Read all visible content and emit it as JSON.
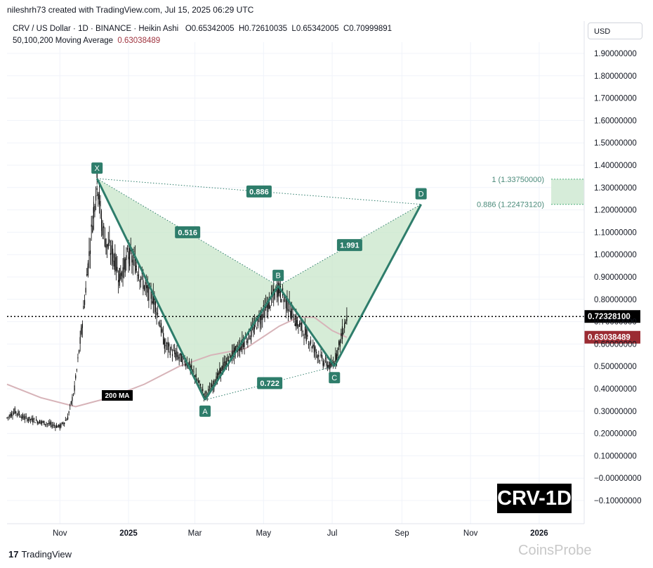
{
  "header": {
    "creator": "nileshrh73 created with TradingView.com, Jul 15, 2025 06:29 UTC",
    "symbol_line": "CRV / US Dollar · 1D · BINANCE · Heikin Ashi",
    "ohlc": {
      "o_label": "O",
      "o": "0.65342005",
      "h_label": "H",
      "h": "0.72610035",
      "l_label": "L",
      "l": "0.65342005",
      "c_label": "C",
      "c": "0.70999891"
    },
    "ma_label": "50,100,200 Moving Average",
    "ma_value": "0.63038489"
  },
  "currency_button": "USD",
  "badge": "CRV-1D",
  "footer": {
    "logo_text": "TradingView",
    "watermark": "CoinsProbe"
  },
  "colors": {
    "pattern_fill": "#c8e6c9",
    "pattern_line": "#2e7d6b",
    "label_bg": "#2e7d6b",
    "ma_line": "#d7b3b8",
    "last_price_bg": "#000000",
    "ma_price_bg": "#9b2c33",
    "target_zone": "#d6ecd9"
  },
  "chart_data": {
    "type": "line",
    "title": "",
    "xlabel": "",
    "ylabel": "",
    "y_axis": {
      "ticks": [
        "1.90000000",
        "1.80000000",
        "1.70000000",
        "1.60000000",
        "1.50000000",
        "1.40000000",
        "1.30000000",
        "1.20000000",
        "1.10000000",
        "1.00000000",
        "0.90000000",
        "0.80000000",
        "0.70000000",
        "0.60000000",
        "0.50000000",
        "0.40000000",
        "0.30000000",
        "0.20000000",
        "0.10000000",
        "−0.00000000",
        "−0.10000000"
      ],
      "tick_values": [
        1.9,
        1.8,
        1.7,
        1.6,
        1.5,
        1.4,
        1.3,
        1.2,
        1.1,
        1.0,
        0.9,
        0.8,
        0.7,
        0.6,
        0.5,
        0.4,
        0.3,
        0.2,
        0.1,
        0.0,
        -0.1
      ],
      "range": [
        -0.2,
        2.0
      ]
    },
    "x_axis": {
      "ticks": [
        {
          "label": "Nov",
          "date": "2024-11-01"
        },
        {
          "label": "2025",
          "date": "2025-01-01"
        },
        {
          "label": "Mar",
          "date": "2025-03-01"
        },
        {
          "label": "May",
          "date": "2025-05-01"
        },
        {
          "label": "Jul",
          "date": "2025-07-01"
        },
        {
          "label": "Sep",
          "date": "2025-09-01"
        },
        {
          "label": "Nov",
          "date": "2025-11-01"
        },
        {
          "label": "2026",
          "date": "2026-01-01"
        }
      ],
      "range": [
        "2024-09-15",
        "2026-02-10"
      ]
    },
    "last_price": {
      "value": 0.723281,
      "label": "0.72328100"
    },
    "ma_price": {
      "value": 0.63038489,
      "label": "0.63038489"
    },
    "ma_annotation": "200 MA",
    "price_series": [
      {
        "date": "2024-09-15",
        "value": 0.27
      },
      {
        "date": "2024-09-22",
        "value": 0.3
      },
      {
        "date": "2024-09-30",
        "value": 0.27
      },
      {
        "date": "2024-10-08",
        "value": 0.26
      },
      {
        "date": "2024-10-16",
        "value": 0.25
      },
      {
        "date": "2024-10-24",
        "value": 0.24
      },
      {
        "date": "2024-11-01",
        "value": 0.23
      },
      {
        "date": "2024-11-08",
        "value": 0.27
      },
      {
        "date": "2024-11-14",
        "value": 0.4
      },
      {
        "date": "2024-11-20",
        "value": 0.65
      },
      {
        "date": "2024-11-26",
        "value": 0.95
      },
      {
        "date": "2024-12-01",
        "value": 1.2
      },
      {
        "date": "2024-12-04",
        "value": 1.34
      },
      {
        "date": "2024-12-08",
        "value": 1.15
      },
      {
        "date": "2024-12-12",
        "value": 1.05
      },
      {
        "date": "2024-12-18",
        "value": 1.0
      },
      {
        "date": "2024-12-24",
        "value": 0.9
      },
      {
        "date": "2025-01-01",
        "value": 1.0
      },
      {
        "date": "2025-01-08",
        "value": 0.95
      },
      {
        "date": "2025-01-16",
        "value": 0.85
      },
      {
        "date": "2025-01-24",
        "value": 0.8
      },
      {
        "date": "2025-02-02",
        "value": 0.6
      },
      {
        "date": "2025-02-12",
        "value": 0.55
      },
      {
        "date": "2025-02-22",
        "value": 0.52
      },
      {
        "date": "2025-03-02",
        "value": 0.45
      },
      {
        "date": "2025-03-10",
        "value": 0.37
      },
      {
        "date": "2025-03-18",
        "value": 0.42
      },
      {
        "date": "2025-03-26",
        "value": 0.5
      },
      {
        "date": "2025-04-03",
        "value": 0.55
      },
      {
        "date": "2025-04-12",
        "value": 0.6
      },
      {
        "date": "2025-04-20",
        "value": 0.65
      },
      {
        "date": "2025-04-28",
        "value": 0.72
      },
      {
        "date": "2025-05-06",
        "value": 0.78
      },
      {
        "date": "2025-05-14",
        "value": 0.85
      },
      {
        "date": "2025-05-22",
        "value": 0.78
      },
      {
        "date": "2025-05-30",
        "value": 0.7
      },
      {
        "date": "2025-06-07",
        "value": 0.65
      },
      {
        "date": "2025-06-15",
        "value": 0.58
      },
      {
        "date": "2025-06-23",
        "value": 0.52
      },
      {
        "date": "2025-06-30",
        "value": 0.5
      },
      {
        "date": "2025-07-05",
        "value": 0.55
      },
      {
        "date": "2025-07-10",
        "value": 0.65
      },
      {
        "date": "2025-07-14",
        "value": 0.72
      }
    ],
    "ma_series": [
      {
        "date": "2024-09-15",
        "value": 0.42
      },
      {
        "date": "2024-10-15",
        "value": 0.36
      },
      {
        "date": "2024-11-15",
        "value": 0.32
      },
      {
        "date": "2024-12-15",
        "value": 0.36
      },
      {
        "date": "2025-01-15",
        "value": 0.42
      },
      {
        "date": "2025-02-15",
        "value": 0.5
      },
      {
        "date": "2025-03-15",
        "value": 0.55
      },
      {
        "date": "2025-04-15",
        "value": 0.58
      },
      {
        "date": "2025-05-15",
        "value": 0.68
      },
      {
        "date": "2025-06-01",
        "value": 0.72
      },
      {
        "date": "2025-06-15",
        "value": 0.72
      },
      {
        "date": "2025-07-01",
        "value": 0.66
      },
      {
        "date": "2025-07-14",
        "value": 0.63
      }
    ],
    "harmonic_pattern": {
      "points": [
        {
          "label": "X",
          "date": "2024-12-04",
          "value": 1.34
        },
        {
          "label": "A",
          "date": "2025-03-10",
          "value": 0.35
        },
        {
          "label": "B",
          "date": "2025-05-14",
          "value": 0.86
        },
        {
          "label": "C",
          "date": "2025-07-03",
          "value": 0.5
        },
        {
          "label": "D",
          "date": "2025-09-18",
          "value": 1.225
        }
      ],
      "ratios": [
        {
          "label": "0.516",
          "between": "X-A-B"
        },
        {
          "label": "1.991",
          "between": "B-C-D"
        },
        {
          "label": "0.886",
          "between": "X-A-D"
        },
        {
          "label": "0.722",
          "between": "A-B-C"
        }
      ]
    },
    "target_zone": {
      "levels": [
        {
          "label": "1 (1.33750000)",
          "value": 1.3375
        },
        {
          "label": "0.886 (1.22473120)",
          "value": 1.2247312
        }
      ],
      "start_date": "2025-10-15",
      "end_date": "2026-02-10"
    }
  }
}
